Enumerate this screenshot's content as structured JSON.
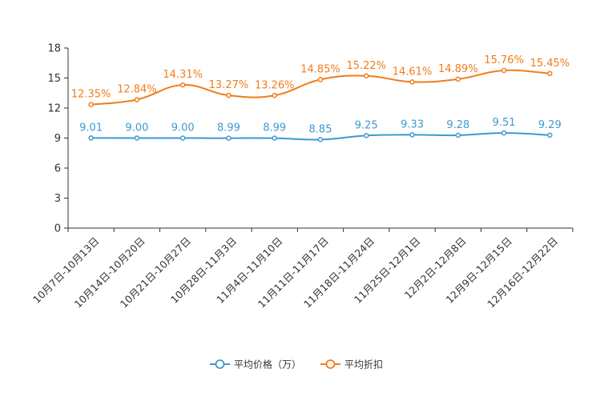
{
  "chart_data": {
    "type": "line",
    "categories": [
      "10月7日-10月13日",
      "10月14日-10月20日",
      "10月21日-10月27日",
      "10月28日-11月3日",
      "11月4日-11月10日",
      "11月11日-11月17日",
      "11月18日-11月24日",
      "11月25日-12月1日",
      "12月2日-12月8日",
      "12月9日-12月15日",
      "12月16日-12月22日"
    ],
    "y_ticks": [
      "0",
      "3",
      "6",
      "9",
      "12",
      "15",
      "18"
    ],
    "ylim": [
      0,
      18
    ],
    "series": [
      {
        "name": "平均价格（万）",
        "color": "#3d9ad1",
        "values": [
          9.01,
          9.0,
          9.0,
          8.99,
          8.99,
          8.85,
          9.25,
          9.33,
          9.28,
          9.51,
          9.29
        ],
        "labels": [
          "9.01",
          "9.00",
          "9.00",
          "8.99",
          "8.99",
          "8.85",
          "9.25",
          "9.33",
          "9.28",
          "9.51",
          "9.29"
        ]
      },
      {
        "name": "平均折扣",
        "color": "#f07d1a",
        "values": [
          12.35,
          12.84,
          14.31,
          13.27,
          13.26,
          14.85,
          15.22,
          14.61,
          14.89,
          15.76,
          15.45
        ],
        "labels": [
          "12.35%",
          "12.84%",
          "14.31%",
          "13.27%",
          "13.26%",
          "14.85%",
          "15.22%",
          "14.61%",
          "14.89%",
          "15.76%",
          "15.45%"
        ]
      }
    ],
    "legend_position": "bottom-center"
  }
}
